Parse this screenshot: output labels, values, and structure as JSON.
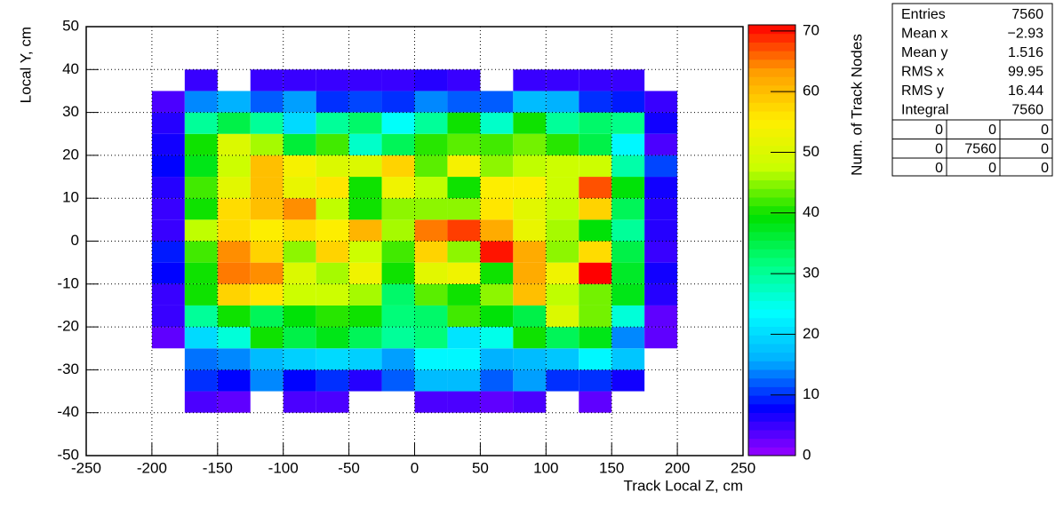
{
  "chart_data": {
    "type": "heatmap",
    "xlabel": "Track Local Z, cm",
    "ylabel": "Local Y, cm",
    "zlabel": "Num. of Track Nodes",
    "xlim": [
      -250,
      250
    ],
    "xticks": [
      -250,
      -200,
      -150,
      -100,
      -50,
      0,
      50,
      100,
      150,
      200,
      250
    ],
    "ylim": [
      -50,
      50
    ],
    "yticks": [
      -50,
      -40,
      -30,
      -20,
      -10,
      0,
      10,
      20,
      30,
      40,
      50
    ],
    "zlim": [
      0,
      71
    ],
    "zticks": [
      0,
      10,
      20,
      30,
      40,
      50,
      60,
      70
    ],
    "grid": true,
    "palette": [
      "#9900ff",
      "#0000ff",
      "#00b0ff",
      "#00ffff",
      "#00ff80",
      "#00e000",
      "#c8ff00",
      "#ffee00",
      "#ffa000",
      "#ff0000"
    ],
    "xbins": [
      -200,
      -175,
      -150,
      -125,
      -100,
      -75,
      -50,
      -25,
      0,
      25,
      50,
      75,
      100,
      125,
      150,
      175,
      200
    ],
    "ybins": [
      -40,
      -35,
      -30,
      -25,
      -20,
      -15,
      -10,
      -5,
      0,
      5,
      10,
      15,
      20,
      25,
      30,
      35,
      40
    ],
    "z": [
      [
        null,
        4,
        3,
        null,
        4,
        4,
        null,
        null,
        4,
        4,
        3,
        4,
        null,
        3,
        null,
        null
      ],
      [
        null,
        10,
        8,
        14,
        8,
        10,
        6,
        12,
        17,
        17,
        12,
        15,
        10,
        10,
        7,
        null
      ],
      [
        null,
        13,
        14,
        17,
        19,
        20,
        19,
        15,
        23,
        23,
        16,
        17,
        18,
        23,
        18,
        null
      ],
      [
        3,
        20,
        26,
        40,
        35,
        38,
        34,
        30,
        32,
        21,
        25,
        40,
        34,
        38,
        14,
        3
      ],
      [
        5,
        30,
        40,
        34,
        39,
        41,
        40,
        32,
        33,
        42,
        39,
        35,
        50,
        44,
        26,
        3
      ],
      [
        5,
        40,
        58,
        56,
        48,
        48,
        46,
        33,
        43,
        40,
        45,
        60,
        47,
        44,
        38,
        6
      ],
      [
        8,
        40,
        65,
        64,
        50,
        46,
        53,
        40,
        51,
        53,
        40,
        62,
        53,
        71,
        37,
        7
      ],
      [
        9,
        42,
        64,
        58,
        45,
        58,
        48,
        42,
        58,
        45,
        70,
        62,
        45,
        57,
        35,
        5
      ],
      [
        5,
        47,
        57,
        55,
        57,
        55,
        61,
        46,
        65,
        68,
        62,
        52,
        46,
        39,
        30,
        6
      ],
      [
        5,
        40,
        57,
        60,
        64,
        47,
        40,
        45,
        45,
        45,
        56,
        51,
        47,
        58,
        34,
        6
      ],
      [
        6,
        42,
        51,
        60,
        52,
        56,
        40,
        53,
        47,
        40,
        55,
        55,
        48,
        67,
        39,
        7
      ],
      [
        8,
        38,
        48,
        60,
        54,
        50,
        50,
        58,
        43,
        54,
        45,
        47,
        48,
        48,
        29,
        11
      ],
      [
        7,
        40,
        50,
        46,
        36,
        42,
        27,
        34,
        41,
        43,
        42,
        44,
        41,
        35,
        23,
        4
      ],
      [
        6,
        30,
        35,
        30,
        20,
        30,
        33,
        24,
        30,
        40,
        27,
        40,
        30,
        33,
        31,
        7
      ],
      [
        4,
        14,
        16,
        12,
        15,
        10,
        11,
        10,
        14,
        12,
        12,
        17,
        16,
        10,
        9,
        5
      ],
      [
        null,
        5,
        null,
        5,
        5,
        5,
        5,
        5,
        6,
        5,
        null,
        5,
        5,
        5,
        5,
        null
      ]
    ],
    "stats": [
      [
        "Entries",
        7560
      ],
      [
        "Mean x",
        "−2.93"
      ],
      [
        "Mean y",
        1.516
      ],
      [
        "RMS x",
        99.95
      ],
      [
        "RMS y",
        16.44
      ],
      [
        "Integral",
        7560
      ]
    ],
    "stats_grid": [
      [
        0,
        0,
        0
      ],
      [
        0,
        7560,
        0
      ],
      [
        0,
        0,
        0
      ]
    ]
  }
}
